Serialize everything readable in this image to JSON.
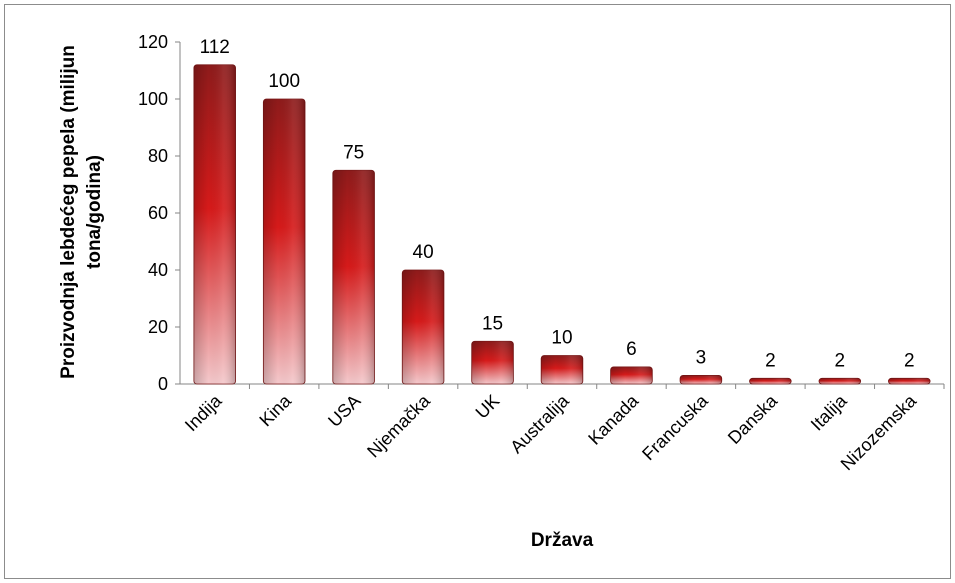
{
  "chart_data": {
    "type": "bar",
    "title": "",
    "xlabel": "Država",
    "ylabel": "Proizvodnja lebdećeg pepela (milijun tona/godina)",
    "ylabel_lines": [
      "Proizvodnja lebdećeg pepela (milijun",
      "tona/godina)"
    ],
    "categories": [
      "Indija",
      "Kina",
      "USA",
      "Njemačka",
      "UK",
      "Australija",
      "Kanada",
      "Francuska",
      "Danska",
      "Italija",
      "Nizozemska"
    ],
    "values": [
      112,
      100,
      75,
      40,
      15,
      10,
      6,
      3,
      2,
      2,
      2
    ],
    "ylim": [
      0,
      120
    ],
    "yticks": [
      0,
      20,
      40,
      60,
      80,
      100,
      120
    ],
    "grid": false,
    "legend": "none",
    "bar_colors": {
      "dark": "#8e1b1b",
      "mid": "#d61a1a",
      "light": "#f4c9cc"
    }
  }
}
